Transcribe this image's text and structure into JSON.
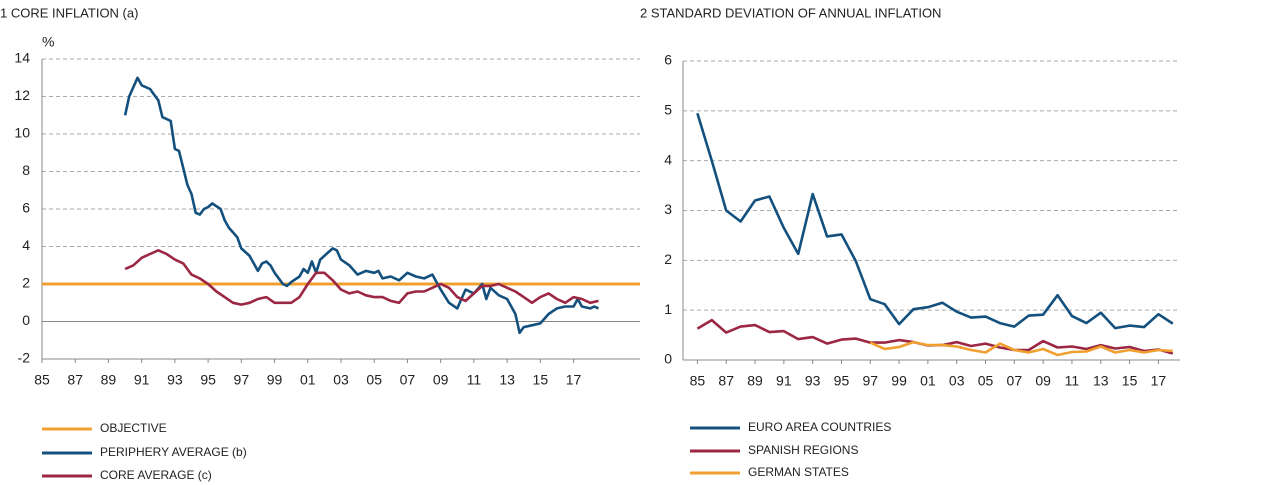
{
  "chart_data": [
    {
      "type": "line",
      "title": "1  CORE INFLATION (a)",
      "ylabel": "%",
      "xlim": [
        1985,
        2021
      ],
      "ylim": [
        -2,
        14
      ],
      "yticks": [
        -2,
        0,
        2,
        4,
        6,
        8,
        10,
        12,
        14
      ],
      "xticks": [
        {
          "value": 1985,
          "label": "85"
        },
        {
          "value": 1987,
          "label": "87"
        },
        {
          "value": 1989,
          "label": "89"
        },
        {
          "value": 1991,
          "label": "91"
        },
        {
          "value": 1993,
          "label": "93"
        },
        {
          "value": 1995,
          "label": "95"
        },
        {
          "value": 1997,
          "label": "97"
        },
        {
          "value": 1999,
          "label": "99"
        },
        {
          "value": 2001,
          "label": "01"
        },
        {
          "value": 2003,
          "label": "03"
        },
        {
          "value": 2005,
          "label": "05"
        },
        {
          "value": 2007,
          "label": "07"
        },
        {
          "value": 2009,
          "label": "09"
        },
        {
          "value": 2011,
          "label": "11"
        },
        {
          "value": 2013,
          "label": "13"
        },
        {
          "value": 2015,
          "label": "15"
        },
        {
          "value": 2017,
          "label": "17"
        }
      ],
      "grid": true,
      "legend": "bottom-left",
      "series": [
        {
          "name": "OBJECTIVE",
          "color": "#f0a030",
          "x": [
            1985,
            2021
          ],
          "values": [
            2,
            2
          ]
        },
        {
          "name": "PERIPHERY AVERAGE (b)",
          "color": "#14507e",
          "x": [
            1990,
            1990.25,
            1990.75,
            1991,
            1991.5,
            1992,
            1992.25,
            1992.75,
            1993,
            1993.25,
            1993.5,
            1993.75,
            1994,
            1994.25,
            1994.5,
            1994.75,
            1995,
            1995.25,
            1995.75,
            1996,
            1996.25,
            1996.75,
            1997,
            1997.5,
            1998,
            1998.25,
            1998.5,
            1998.75,
            1999,
            1999.5,
            1999.75,
            2000,
            2000.5,
            2000.75,
            2001,
            2001.25,
            2001.5,
            2001.75,
            2002.25,
            2002.5,
            2002.75,
            2003,
            2003.5,
            2004,
            2004.5,
            2005,
            2005.25,
            2005.5,
            2006,
            2006.5,
            2007,
            2007.5,
            2008,
            2008.5,
            2009,
            2009.5,
            2010,
            2010.25,
            2010.5,
            2011,
            2011.5,
            2011.75,
            2012,
            2012.5,
            2013,
            2013.5,
            2013.75,
            2014,
            2014.5,
            2015,
            2015.5,
            2016,
            2016.5,
            2017,
            2017.25,
            2017.5,
            2018,
            2018.25,
            2018.5
          ],
          "values": [
            11,
            12,
            13,
            12.6,
            12.4,
            11.8,
            10.9,
            10.7,
            9.2,
            9.1,
            8.2,
            7.3,
            6.8,
            5.8,
            5.7,
            6,
            6.1,
            6.3,
            6,
            5.4,
            5,
            4.5,
            3.9,
            3.5,
            2.7,
            3.1,
            3.2,
            3,
            2.6,
            2,
            1.9,
            2.1,
            2.4,
            2.8,
            2.6,
            3.2,
            2.6,
            3.3,
            3.7,
            3.9,
            3.8,
            3.3,
            3,
            2.5,
            2.7,
            2.6,
            2.7,
            2.3,
            2.4,
            2.2,
            2.6,
            2.4,
            2.3,
            2.5,
            1.7,
            1,
            0.7,
            1.2,
            1.7,
            1.5,
            2,
            1.2,
            1.8,
            1.4,
            1.2,
            0.4,
            -0.6,
            -0.3,
            -0.2,
            -0.1,
            0.4,
            0.7,
            0.8,
            0.8,
            1.2,
            0.8,
            0.7,
            0.8,
            0.7
          ]
        },
        {
          "name": "CORE AVERAGE (c)",
          "color": "#9b2743",
          "x": [
            1990,
            1990.5,
            1991,
            1991.5,
            1992,
            1992.5,
            1993,
            1993.5,
            1994,
            1994.5,
            1995,
            1995.5,
            1996,
            1996.5,
            1997,
            1997.5,
            1998,
            1998.5,
            1999,
            1999.5,
            2000,
            2000.5,
            2001,
            2001.5,
            2002,
            2002.5,
            2003,
            2003.5,
            2004,
            2004.5,
            2005,
            2005.5,
            2006,
            2006.5,
            2007,
            2007.5,
            2008,
            2008.5,
            2009,
            2009.5,
            2010,
            2010.5,
            2011,
            2011.5,
            2012,
            2012.5,
            2013,
            2013.5,
            2014,
            2014.5,
            2015,
            2015.5,
            2016,
            2016.5,
            2017,
            2017.5,
            2018,
            2018.5
          ],
          "values": [
            2.8,
            3,
            3.4,
            3.6,
            3.8,
            3.6,
            3.3,
            3.1,
            2.5,
            2.3,
            2,
            1.6,
            1.3,
            1,
            0.9,
            1,
            1.2,
            1.3,
            1,
            1,
            1,
            1.3,
            2,
            2.6,
            2.6,
            2.2,
            1.7,
            1.5,
            1.6,
            1.4,
            1.3,
            1.3,
            1.1,
            1,
            1.5,
            1.6,
            1.6,
            1.8,
            2,
            1.8,
            1.3,
            1.1,
            1.5,
            1.9,
            1.9,
            2,
            1.8,
            1.6,
            1.3,
            1,
            1.3,
            1.5,
            1.2,
            1,
            1.3,
            1.2,
            1,
            1.1
          ]
        }
      ]
    },
    {
      "type": "line",
      "title": "2  STANDARD DEVIATION OF ANNUAL INFLATION",
      "xlim": [
        1984,
        2018.5
      ],
      "ylim": [
        0,
        6
      ],
      "yticks": [
        0,
        1,
        2,
        3,
        4,
        5,
        6
      ],
      "xticks": [
        {
          "value": 1985,
          "label": "85"
        },
        {
          "value": 1987,
          "label": "87"
        },
        {
          "value": 1989,
          "label": "89"
        },
        {
          "value": 1991,
          "label": "91"
        },
        {
          "value": 1993,
          "label": "93"
        },
        {
          "value": 1995,
          "label": "95"
        },
        {
          "value": 1997,
          "label": "97"
        },
        {
          "value": 1999,
          "label": "99"
        },
        {
          "value": 2001,
          "label": "01"
        },
        {
          "value": 2003,
          "label": "03"
        },
        {
          "value": 2005,
          "label": "05"
        },
        {
          "value": 2007,
          "label": "07"
        },
        {
          "value": 2009,
          "label": "09"
        },
        {
          "value": 2011,
          "label": "11"
        },
        {
          "value": 2013,
          "label": "13"
        },
        {
          "value": 2015,
          "label": "15"
        },
        {
          "value": 2017,
          "label": "17"
        }
      ],
      "grid": true,
      "legend": "bottom-left",
      "series": [
        {
          "name": "EURO AREA COUNTRIES",
          "color": "#14507e",
          "x": [
            1985,
            1986,
            1987,
            1988,
            1989,
            1990,
            1991,
            1992,
            1993,
            1994,
            1995,
            1996,
            1997,
            1998,
            1999,
            2000,
            2001,
            2002,
            2003,
            2004,
            2005,
            2006,
            2007,
            2008,
            2009,
            2010,
            2011,
            2012,
            2013,
            2014,
            2015,
            2016,
            2017,
            2018
          ],
          "values": [
            4.95,
            4,
            3,
            2.78,
            3.2,
            3.28,
            2.65,
            2.13,
            3.33,
            2.48,
            2.52,
            1.98,
            1.22,
            1.12,
            0.72,
            1.02,
            1.06,
            1.15,
            0.97,
            0.85,
            0.87,
            0.74,
            0.67,
            0.89,
            0.91,
            1.3,
            0.88,
            0.74,
            0.95,
            0.64,
            0.69,
            0.66,
            0.92,
            0.73
          ]
        },
        {
          "name": "SPANISH REGIONS",
          "color": "#9b2743",
          "x": [
            1985,
            1986,
            1987,
            1988,
            1989,
            1990,
            1991,
            1992,
            1993,
            1994,
            1995,
            1996,
            1997,
            1998,
            1999,
            2000,
            2001,
            2002,
            2003,
            2004,
            2005,
            2006,
            2007,
            2008,
            2009,
            2010,
            2011,
            2012,
            2013,
            2014,
            2015,
            2016,
            2017,
            2018
          ],
          "values": [
            0.63,
            0.8,
            0.55,
            0.67,
            0.7,
            0.56,
            0.58,
            0.42,
            0.46,
            0.33,
            0.41,
            0.43,
            0.35,
            0.35,
            0.4,
            0.36,
            0.29,
            0.3,
            0.36,
            0.28,
            0.33,
            0.25,
            0.2,
            0.2,
            0.38,
            0.25,
            0.27,
            0.22,
            0.3,
            0.23,
            0.26,
            0.18,
            0.21,
            0.13
          ]
        },
        {
          "name": "GERMAN STATES",
          "color": "#f0a030",
          "x": [
            1997,
            1998,
            1999,
            2000,
            2001,
            2002,
            2003,
            2004,
            2005,
            2006,
            2007,
            2008,
            2009,
            2010,
            2011,
            2012,
            2013,
            2014,
            2015,
            2016,
            2017,
            2018
          ],
          "values": [
            0.35,
            0.22,
            0.26,
            0.36,
            0.3,
            0.3,
            0.27,
            0.2,
            0.15,
            0.33,
            0.2,
            0.15,
            0.22,
            0.1,
            0.16,
            0.17,
            0.27,
            0.15,
            0.2,
            0.15,
            0.2,
            0.18
          ]
        }
      ]
    }
  ]
}
